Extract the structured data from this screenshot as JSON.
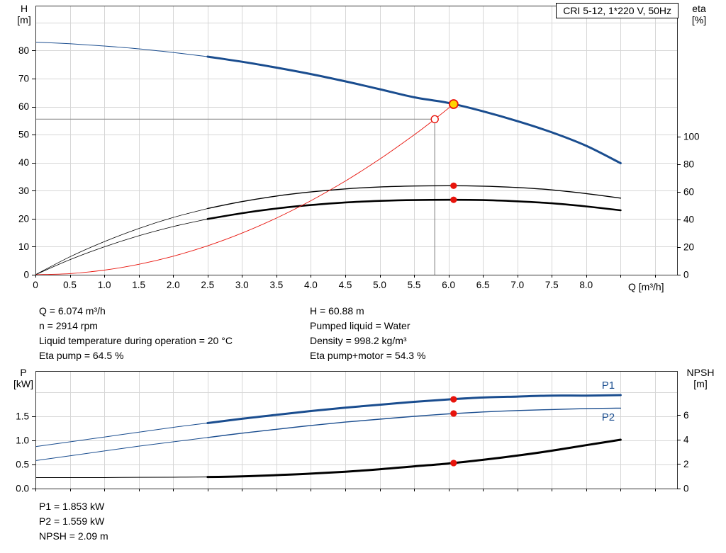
{
  "title": "CRI 5-12, 1*220 V, 50Hz",
  "colors": {
    "curve_blue": "#1a4d8f",
    "curve_black": "#000000",
    "curve_red": "#e8140c",
    "marker_red": "#e8140c",
    "duty_fill": "#ffd400",
    "guide_gray": "#8f8f8f",
    "grid_gray": "#d6d6d6",
    "frame": "#333333"
  },
  "info_top": {
    "left": [
      "Q = 6.074 m³/h",
      "n = 2914 rpm",
      "Liquid temperature during operation = 20 °C",
      "Eta pump = 64.5 %"
    ],
    "right": [
      "H = 60.88 m",
      "Pumped liquid = Water",
      "Density = 998.2 kg/m³",
      "Eta pump+motor = 54.3 %"
    ]
  },
  "info_bottom": [
    "P1 = 1.853 kW",
    "P2 = 1.559 kW",
    "NPSH = 2.09 m"
  ],
  "chart_data": [
    {
      "type": "line",
      "name": "hq-eta-chart",
      "title": "CRI 5-12, 1*220 V, 50Hz",
      "x_axis": {
        "label": "Q [m³/h]",
        "min": 0,
        "max": 9.32,
        "tick_step": 0.5,
        "tick_labels": [
          {
            "v": 0,
            "t": "0"
          },
          {
            "v": 0.5,
            "t": "0.5"
          },
          {
            "v": 1,
            "t": "1.0"
          },
          {
            "v": 1.5,
            "t": "1.5"
          },
          {
            "v": 2,
            "t": "2.0"
          },
          {
            "v": 2.5,
            "t": "2.5"
          },
          {
            "v": 3,
            "t": "3.0"
          },
          {
            "v": 3.5,
            "t": "3.5"
          },
          {
            "v": 4,
            "t": "4.0"
          },
          {
            "v": 4.5,
            "t": "4.5"
          },
          {
            "v": 5,
            "t": "5.0"
          },
          {
            "v": 5.5,
            "t": "5.5"
          },
          {
            "v": 6,
            "t": "6.0"
          },
          {
            "v": 6.5,
            "t": "6.5"
          },
          {
            "v": 7,
            "t": "7.0"
          },
          {
            "v": 7.5,
            "t": "7.5"
          },
          {
            "v": 8,
            "t": "8.0"
          }
        ]
      },
      "y_left": {
        "name": "H",
        "unit": "[m]",
        "min": 0,
        "max": 96,
        "tick_labels": [
          {
            "v": 0,
            "t": "0"
          },
          {
            "v": 10,
            "t": "10"
          },
          {
            "v": 20,
            "t": "20"
          },
          {
            "v": 30,
            "t": "30"
          },
          {
            "v": 40,
            "t": "40"
          },
          {
            "v": 50,
            "t": "50"
          },
          {
            "v": 60,
            "t": "60"
          },
          {
            "v": 70,
            "t": "70"
          },
          {
            "v": 80,
            "t": "80"
          }
        ],
        "grid": [
          10,
          20,
          30,
          40,
          50,
          60,
          70,
          80,
          90
        ]
      },
      "y_right": {
        "name": "eta",
        "unit": "[%]",
        "min": 0,
        "max": 195,
        "tick_labels": [
          {
            "v": 0,
            "t": "0"
          },
          {
            "v": 20,
            "t": "20"
          },
          {
            "v": 40,
            "t": "40"
          },
          {
            "v": 60,
            "t": "60"
          },
          {
            "v": 80,
            "t": "80"
          },
          {
            "v": 100,
            "t": "100"
          }
        ]
      },
      "series": [
        {
          "name": "H pump curve",
          "axis": "left",
          "color": "#1a4d8f",
          "width_thin": 1,
          "width_thick": 3,
          "thick_from": 2.5,
          "points": [
            [
              0,
              83
            ],
            [
              0.5,
              82.4
            ],
            [
              1,
              81.6
            ],
            [
              1.5,
              80.6
            ],
            [
              2,
              79.3
            ],
            [
              2.5,
              77.8
            ],
            [
              3,
              76.0
            ],
            [
              3.5,
              73.9
            ],
            [
              4,
              71.6
            ],
            [
              4.5,
              69.0
            ],
            [
              5,
              66.2
            ],
            [
              5.5,
              63.3
            ],
            [
              6,
              61.3
            ],
            [
              6.5,
              58.3
            ],
            [
              7,
              54.8
            ],
            [
              7.5,
              50.8
            ],
            [
              8,
              46.0
            ],
            [
              8.5,
              39.8
            ]
          ]
        },
        {
          "name": "Eta pump",
          "axis": "right",
          "color": "#000000",
          "width_thin": 0.8,
          "width_thick": 1.4,
          "thick_from": 2.5,
          "points": [
            [
              0,
              0
            ],
            [
              0.5,
              13
            ],
            [
              1,
              24
            ],
            [
              1.5,
              33.5
            ],
            [
              2,
              41.5
            ],
            [
              2.5,
              48
            ],
            [
              3,
              53
            ],
            [
              3.5,
              57
            ],
            [
              4,
              60
            ],
            [
              4.5,
              62.2
            ],
            [
              5,
              63.6
            ],
            [
              5.5,
              64.3
            ],
            [
              6,
              64.5
            ],
            [
              6.5,
              64.2
            ],
            [
              7,
              63.2
            ],
            [
              7.5,
              61.5
            ],
            [
              8,
              58.8
            ],
            [
              8.5,
              55.5
            ]
          ]
        },
        {
          "name": "Eta pump+motor",
          "axis": "right",
          "color": "#000000",
          "width_thin": 0.8,
          "width_thick": 2.6,
          "thick_from": 2.5,
          "points": [
            [
              0,
              0
            ],
            [
              0.5,
              10.9
            ],
            [
              1,
              20.2
            ],
            [
              1.5,
              28.2
            ],
            [
              2,
              34.9
            ],
            [
              2.5,
              40.4
            ],
            [
              3,
              44.6
            ],
            [
              3.5,
              48.0
            ],
            [
              4,
              50.5
            ],
            [
              4.5,
              52.4
            ],
            [
              5,
              53.5
            ],
            [
              5.5,
              54.1
            ],
            [
              6,
              54.3
            ],
            [
              6.5,
              54.1
            ],
            [
              7,
              53.2
            ],
            [
              7.5,
              51.8
            ],
            [
              8,
              49.5
            ],
            [
              8.5,
              46.7
            ]
          ]
        },
        {
          "name": "System curve",
          "axis": "left",
          "color": "#e8140c",
          "width_thin": 0.9,
          "width_thick": 0.9,
          "points": [
            [
              0,
              0
            ],
            [
              0.5,
              0.41
            ],
            [
              1,
              1.65
            ],
            [
              1.5,
              3.71
            ],
            [
              2,
              6.6
            ],
            [
              2.5,
              10.31
            ],
            [
              3,
              14.85
            ],
            [
              3.5,
              20.21
            ],
            [
              4,
              26.4
            ],
            [
              4.5,
              33.41
            ],
            [
              5,
              41.24
            ],
            [
              5.5,
              49.9
            ],
            [
              5.8,
              55.5
            ],
            [
              6.074,
              60.88
            ]
          ]
        }
      ],
      "guides": [
        {
          "type": "h",
          "axis": "left",
          "value": 55.5,
          "q_from": 0,
          "q_to": 5.8
        },
        {
          "type": "v",
          "axis": "left",
          "q": 5.8,
          "v_from": 0,
          "v_to": 55.5
        }
      ],
      "markers": [
        {
          "q": 6.074,
          "value": 60.88,
          "axis": "left",
          "style": "duty"
        },
        {
          "q": 5.8,
          "value": 55.5,
          "axis": "left",
          "style": "open-red"
        },
        {
          "q": 6.074,
          "value": 64.5,
          "axis": "right",
          "style": "red-dot"
        },
        {
          "q": 6.074,
          "value": 54.3,
          "axis": "right",
          "style": "red-dot"
        }
      ],
      "operating_point": {
        "Q_m3h": 6.074,
        "H_m": 60.88,
        "eta_pump_pct": 64.5,
        "eta_pump_motor_pct": 54.3,
        "n_rpm": 2914
      }
    },
    {
      "type": "line",
      "name": "power-npsh-chart",
      "x_axis": {
        "label": "",
        "min": 0,
        "max": 9.32,
        "tick_step": 0.5,
        "tick_labels": []
      },
      "y_left": {
        "name": "P",
        "unit": "[kW]",
        "min": 0,
        "max": 2.44,
        "tick_labels": [
          {
            "v": 0,
            "t": "0.0"
          },
          {
            "v": 0.5,
            "t": "0.5"
          },
          {
            "v": 1,
            "t": "1.0"
          },
          {
            "v": 1.5,
            "t": "1.5"
          }
        ],
        "grid": [
          0.5,
          1.0,
          1.5,
          2.0
        ]
      },
      "y_right": {
        "name": "NPSH",
        "unit": "[m]",
        "min": 0,
        "max": 9.62,
        "tick_labels": [
          {
            "v": 0,
            "t": "0"
          },
          {
            "v": 2,
            "t": "2"
          },
          {
            "v": 4,
            "t": "4"
          },
          {
            "v": 6,
            "t": "6"
          }
        ]
      },
      "series": [
        {
          "name": "P1",
          "axis": "left",
          "color": "#1a4d8f",
          "width_thin": 1,
          "width_thick": 3,
          "thick_from": 2.5,
          "label_at": [
            8.32,
            2.07
          ],
          "points": [
            [
              0,
              0.87
            ],
            [
              0.5,
              0.97
            ],
            [
              1,
              1.07
            ],
            [
              1.5,
              1.17
            ],
            [
              2,
              1.27
            ],
            [
              2.5,
              1.36
            ],
            [
              3,
              1.45
            ],
            [
              3.5,
              1.53
            ],
            [
              4,
              1.61
            ],
            [
              4.5,
              1.68
            ],
            [
              5,
              1.74
            ],
            [
              5.5,
              1.8
            ],
            [
              6,
              1.85
            ],
            [
              6.5,
              1.89
            ],
            [
              7,
              1.91
            ],
            [
              7.5,
              1.93
            ],
            [
              8,
              1.93
            ],
            [
              8.5,
              1.94
            ]
          ]
        },
        {
          "name": "P2",
          "axis": "left",
          "color": "#1a4d8f",
          "width_thin": 1,
          "width_thick": 1.4,
          "thick_from": 2.5,
          "label_at": [
            8.32,
            1.41
          ],
          "points": [
            [
              0,
              0.58
            ],
            [
              0.5,
              0.68
            ],
            [
              1,
              0.78
            ],
            [
              1.5,
              0.88
            ],
            [
              2,
              0.97
            ],
            [
              2.5,
              1.06
            ],
            [
              3,
              1.15
            ],
            [
              3.5,
              1.23
            ],
            [
              4,
              1.31
            ],
            [
              4.5,
              1.38
            ],
            [
              5,
              1.44
            ],
            [
              5.5,
              1.5
            ],
            [
              6,
              1.55
            ],
            [
              6.5,
              1.59
            ],
            [
              7,
              1.62
            ],
            [
              7.5,
              1.64
            ],
            [
              8,
              1.66
            ],
            [
              8.5,
              1.67
            ]
          ]
        },
        {
          "name": "NPSH",
          "axis": "right",
          "color": "#000000",
          "width_thin": 1,
          "width_thick": 3,
          "thick_from": 2.5,
          "points": [
            [
              0,
              0.9
            ],
            [
              0.5,
              0.9
            ],
            [
              1,
              0.9
            ],
            [
              1.5,
              0.92
            ],
            [
              2,
              0.93
            ],
            [
              2.5,
              0.95
            ],
            [
              3,
              1.0
            ],
            [
              3.5,
              1.1
            ],
            [
              4,
              1.22
            ],
            [
              4.5,
              1.38
            ],
            [
              5,
              1.58
            ],
            [
              5.5,
              1.82
            ],
            [
              6,
              2.05
            ],
            [
              6.5,
              2.35
            ],
            [
              7,
              2.7
            ],
            [
              7.5,
              3.1
            ],
            [
              8,
              3.55
            ],
            [
              8.5,
              4.0
            ]
          ]
        }
      ],
      "guides": [],
      "markers": [
        {
          "q": 6.074,
          "value": 1.853,
          "axis": "left",
          "style": "red-dot"
        },
        {
          "q": 6.074,
          "value": 1.559,
          "axis": "left",
          "style": "red-dot"
        },
        {
          "q": 6.074,
          "value": 2.09,
          "axis": "right",
          "style": "red-dot"
        }
      ],
      "operating_point": {
        "P1_kW": 1.853,
        "P2_kW": 1.559,
        "NPSH_m": 2.09
      }
    }
  ]
}
